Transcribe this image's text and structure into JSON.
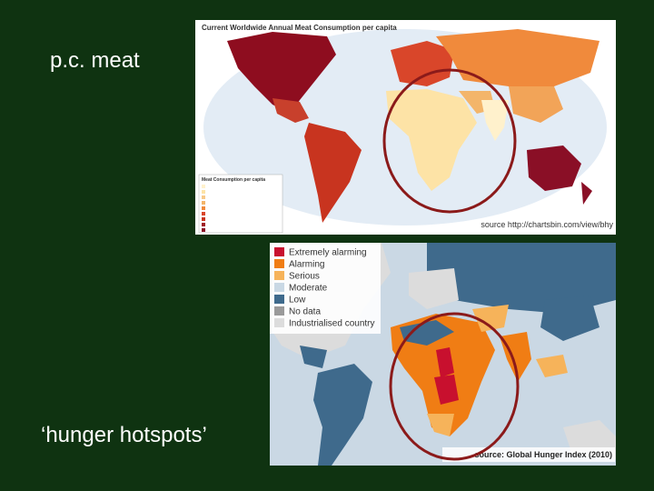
{
  "slide": {
    "labels": [
      "p.c. meat",
      "‘hunger hotspots’"
    ]
  },
  "map1": {
    "title": "Current Worldwide Annual Meat Consumption per capita",
    "legend_title": "Meat Consumption per capita",
    "source": "source http://chartsbin.com/view/bhy"
  },
  "map2": {
    "legend": [
      {
        "label": "Extremely alarming",
        "color": "#c8102e"
      },
      {
        "label": "Alarming",
        "color": "#f07d14"
      },
      {
        "label": "Serious",
        "color": "#f6b35a"
      },
      {
        "label": "Moderate",
        "color": "#c9d8e4"
      },
      {
        "label": "Low",
        "color": "#3f6a8c"
      },
      {
        "label": "No data",
        "color": "#9a9a9a"
      },
      {
        "label": "Industrialised country",
        "color": "#dcdcdc"
      }
    ],
    "source": "source: Global Hunger Index (2010)"
  }
}
